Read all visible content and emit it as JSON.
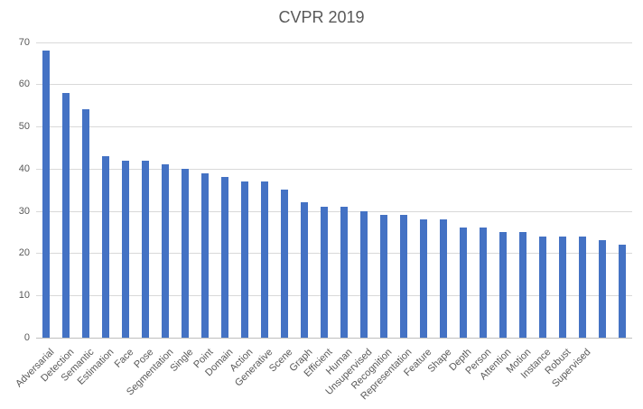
{
  "chart_data": {
    "type": "bar",
    "title": "CVPR 2019",
    "categories": [
      "Adversarial",
      "Detection",
      "Semantic",
      "Estimation",
      "Face",
      "Pose",
      "Segmentation",
      "Single",
      "Point",
      "Domain",
      "Action",
      "Generative",
      "Scene",
      "Graph",
      "Efficient",
      "Human",
      "Unsupervised",
      "Recognition",
      "Representation",
      "Feature",
      "Shape",
      "Depth",
      "Person",
      "Attention",
      "Motion",
      "Instance",
      "Robust",
      "Supervised",
      "",
      ""
    ],
    "values": [
      68,
      58,
      54,
      43,
      42,
      42,
      41,
      40,
      39,
      38,
      37,
      37,
      35,
      32,
      31,
      31,
      30,
      29,
      29,
      28,
      28,
      26,
      26,
      25,
      25,
      24,
      24,
      24,
      23,
      22
    ],
    "xlabel": "",
    "ylabel": "",
    "ylim": [
      0,
      70
    ],
    "yticks": [
      0,
      10,
      20,
      30,
      40,
      50,
      60,
      70
    ],
    "grid": true,
    "legend": false,
    "bar_color": "#4472C4",
    "grid_color": "#D9D9D9",
    "axis_line_color": "#BFBFBF",
    "text_color": "#595959",
    "background_color": "#FFFFFF"
  }
}
